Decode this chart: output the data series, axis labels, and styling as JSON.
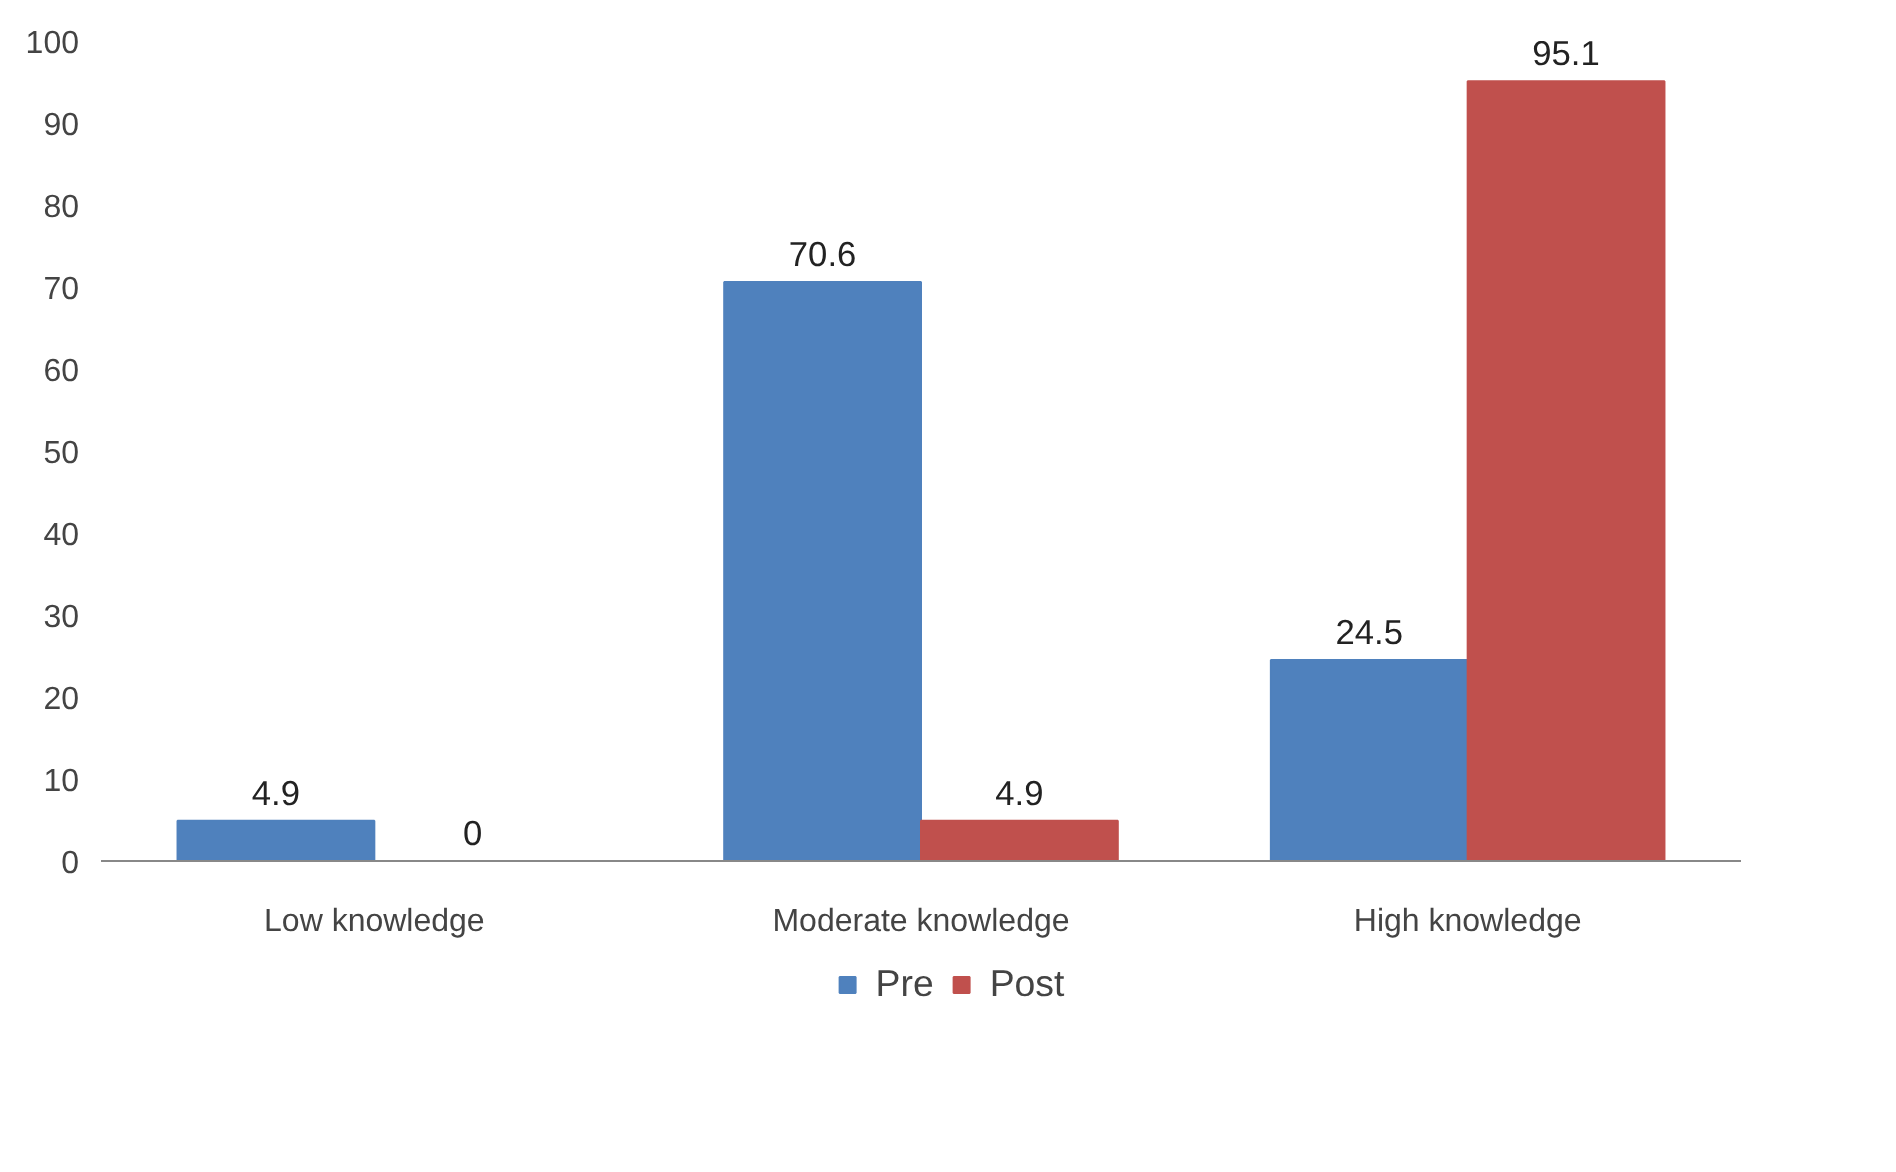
{
  "chart_data": {
    "type": "bar",
    "categories": [
      "Low knowledge",
      "Moderate knowledge",
      "High knowledge"
    ],
    "series": [
      {
        "name": "Pre",
        "color": "#4f81bd",
        "values": [
          4.9,
          70.6,
          24.5
        ]
      },
      {
        "name": "Post",
        "color": "#c0504d",
        "values": [
          0,
          4.9,
          95.1
        ]
      }
    ],
    "ylim": [
      0,
      100
    ],
    "yticks": [
      0,
      10,
      20,
      30,
      40,
      50,
      60,
      70,
      80,
      90,
      100
    ],
    "grid": false,
    "legend": "bottom",
    "data_labels": true
  }
}
